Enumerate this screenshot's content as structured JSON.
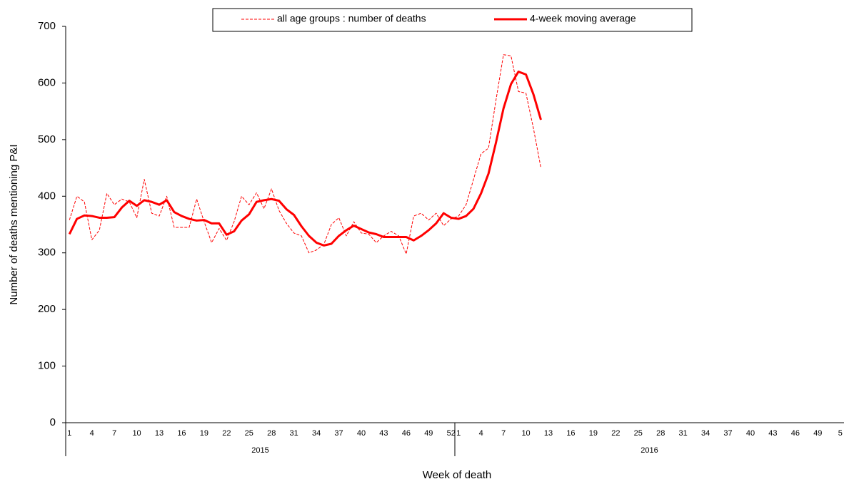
{
  "chart_data": {
    "type": "line",
    "y_label": "Number of deaths mentioning P&I",
    "x_label": "Week of death",
    "groups": [
      "2015",
      "2016"
    ],
    "categories": [
      "1",
      null,
      null,
      "4",
      null,
      null,
      "7",
      null,
      null,
      "10",
      null,
      null,
      "13",
      null,
      null,
      "16",
      null,
      null,
      "19",
      null,
      null,
      "22",
      null,
      null,
      "25",
      null,
      null,
      "28",
      null,
      null,
      "31",
      null,
      null,
      "34",
      null,
      null,
      "37",
      null,
      null,
      "40",
      null,
      null,
      "43",
      null,
      null,
      "46",
      null,
      null,
      "49",
      null,
      null,
      "52",
      "1",
      null,
      null,
      "4",
      null,
      null,
      "7",
      null,
      null,
      "10",
      null,
      null,
      "13",
      null,
      null,
      "16",
      null,
      null,
      "19",
      null,
      null,
      "22",
      null,
      null,
      "25",
      null,
      null,
      "28",
      null,
      null,
      "31",
      null,
      null,
      "34",
      null,
      null,
      "37",
      null,
      null,
      "40",
      null,
      null,
      "43",
      null,
      null,
      "46",
      null,
      null,
      "49",
      null,
      null,
      "5"
    ],
    "series": [
      {
        "name": "all age groups : number of deaths",
        "color": "#ff0000",
        "style": "dashed",
        "width": 1,
        "values": [
          358,
          400,
          390,
          323,
          340,
          405,
          385,
          395,
          390,
          362,
          430,
          370,
          365,
          400,
          345,
          345,
          345,
          395,
          355,
          318,
          343,
          322,
          355,
          400,
          385,
          406,
          378,
          413,
          375,
          352,
          335,
          330,
          300,
          305,
          315,
          350,
          362,
          330,
          355,
          335,
          333,
          318,
          330,
          338,
          330,
          298,
          365,
          370,
          358,
          370,
          348,
          360,
          365,
          385,
          430,
          475,
          485,
          570,
          650,
          648,
          585,
          582,
          520,
          450,
          null,
          null,
          null,
          null,
          null,
          null,
          null,
          null,
          null,
          null,
          null,
          null,
          null,
          null,
          null,
          null,
          null,
          null,
          null,
          null,
          null,
          null,
          null,
          null,
          null,
          null,
          null,
          null,
          null,
          null,
          null,
          null,
          null,
          null,
          null,
          null,
          null,
          null,
          null,
          null
        ]
      },
      {
        "name": "4-week moving average",
        "color": "#ff0000",
        "style": "solid",
        "width": 3,
        "values": [
          333,
          360,
          366,
          365,
          362,
          362,
          363,
          380,
          392,
          383,
          393,
          390,
          385,
          393,
          372,
          365,
          360,
          357,
          358,
          352,
          352,
          332,
          338,
          357,
          368,
          390,
          393,
          395,
          392,
          377,
          367,
          347,
          330,
          318,
          313,
          316,
          330,
          340,
          348,
          342,
          336,
          333,
          328,
          328,
          328,
          328,
          322,
          330,
          340,
          352,
          370,
          362,
          360,
          365,
          378,
          405,
          440,
          495,
          555,
          598,
          620,
          615,
          580,
          535,
          null,
          null,
          null,
          null,
          null,
          null,
          null,
          null,
          null,
          null,
          null,
          null,
          null,
          null,
          null,
          null,
          null,
          null,
          null,
          null,
          null,
          null,
          null,
          null,
          null,
          null,
          null,
          null,
          null,
          null,
          null,
          null,
          null,
          null,
          null,
          null,
          null,
          null,
          null,
          null
        ]
      }
    ],
    "ylim": [
      0,
      700
    ],
    "yticks": [
      0,
      100,
      200,
      300,
      400,
      500,
      600,
      700
    ],
    "grid": false,
    "legend": "top"
  }
}
